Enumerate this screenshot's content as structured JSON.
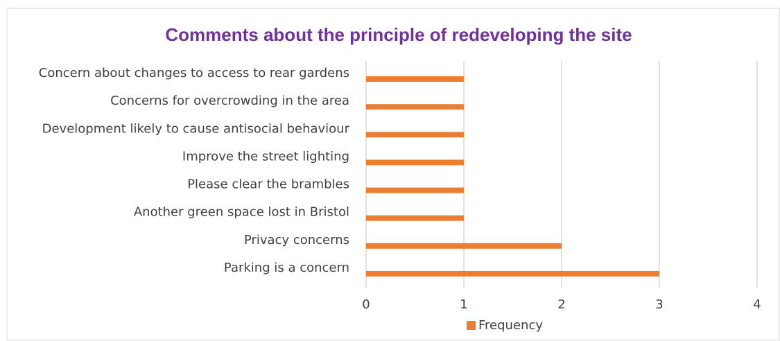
{
  "chart_data": {
    "type": "hbar",
    "title": "Comments about the principle of redeveloping the site",
    "categories": [
      "Concern about changes to access to rear gardens",
      "Concerns for overcrowding in the area",
      "Development likely to cause antisocial behaviour",
      "Improve the street lighting",
      "Please clear the brambles",
      "Another green space lost in Bristol",
      "Privacy concerns",
      "Parking is a concern"
    ],
    "series": [
      {
        "name": "Frequency",
        "color": "#ed7d31",
        "values": [
          1,
          1,
          1,
          1,
          1,
          1,
          2,
          3
        ]
      }
    ],
    "xlim": [
      0,
      4
    ],
    "xticks": [
      0,
      1,
      2,
      3,
      4
    ],
    "grid": true,
    "legend": "bottom"
  }
}
